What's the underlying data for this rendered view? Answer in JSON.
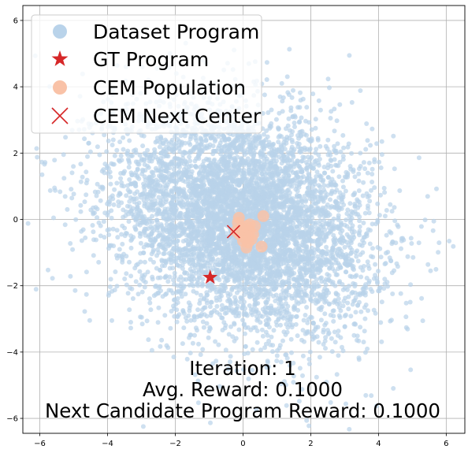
{
  "chart_data": {
    "type": "scatter",
    "title": "",
    "xlabel": "",
    "ylabel": "",
    "xlim": [
      -6.5,
      6.55
    ],
    "ylim": [
      -6.45,
      6.45
    ],
    "grid": true,
    "legend_placement": "top-left",
    "x_ticks": [
      -6,
      -4,
      -2,
      0,
      2,
      4,
      6
    ],
    "x_tick_labels": [
      "−6",
      "−4",
      "−2",
      "0",
      "2",
      "4",
      "6"
    ],
    "y_ticks": [
      -6,
      -4,
      -2,
      0,
      2,
      4,
      6
    ],
    "y_tick_labels": [
      "−6",
      "−4",
      "−2",
      "0",
      "2",
      "4",
      "6"
    ],
    "series": [
      {
        "name": "Dataset Program",
        "marker": "circle",
        "color": "#b9d3ea",
        "distribution": {
          "center": [
            0.0,
            0.0
          ],
          "std": [
            1.9,
            1.7
          ],
          "correlation": -0.25,
          "approx_count": 100000
        }
      },
      {
        "name": "GT Program",
        "marker": "star",
        "color": "#d62728",
        "points": [
          [
            -0.97,
            -1.75
          ]
        ]
      },
      {
        "name": "CEM Population",
        "marker": "circle",
        "color": "#f9c2a7",
        "points": [
          [
            0.0,
            -0.3
          ],
          [
            0.1,
            -0.4
          ],
          [
            0.15,
            -0.5
          ],
          [
            0.2,
            -0.35
          ],
          [
            0.05,
            -0.55
          ],
          [
            -0.1,
            -0.45
          ],
          [
            0.25,
            -0.6
          ],
          [
            0.1,
            -0.2
          ],
          [
            -0.05,
            -0.25
          ],
          [
            0.3,
            -0.45
          ],
          [
            0.15,
            -0.7
          ],
          [
            0.6,
            0.1
          ],
          [
            0.55,
            -0.82
          ],
          [
            -0.12,
            0.05
          ],
          [
            0.1,
            -0.85
          ],
          [
            -0.15,
            -0.1
          ],
          [
            0.35,
            -0.2
          ],
          [
            0.0,
            -0.65
          ],
          [
            0.2,
            -0.15
          ],
          [
            -0.2,
            -0.35
          ]
        ]
      },
      {
        "name": "CEM Next Center",
        "marker": "x",
        "color": "#d62728",
        "points": [
          [
            -0.28,
            -0.37
          ]
        ]
      }
    ],
    "annotations": [
      "Iteration: 1",
      "Avg. Reward:  0.1000",
      "Next Candidate Program Reward:  0.1000"
    ]
  }
}
